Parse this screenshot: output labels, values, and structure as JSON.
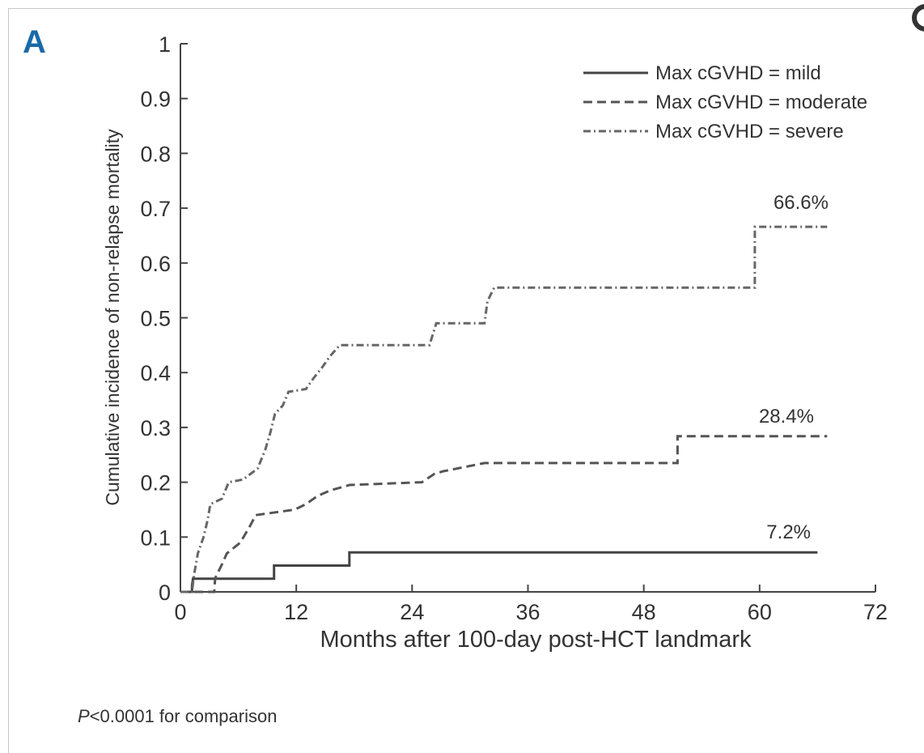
{
  "panel_label": "A",
  "footnote": {
    "p_symbol": "P",
    "text": "<0.0001 for comparison"
  },
  "chart_data": {
    "type": "line",
    "xlabel": "Months after 100-day post-HCT landmark",
    "ylabel": "Cumulative incidence of non-relapse mortality",
    "xlim": [
      0,
      72
    ],
    "ylim": [
      0,
      1
    ],
    "x_ticks": [
      0,
      12,
      24,
      36,
      48,
      60,
      72
    ],
    "y_ticks": [
      0,
      0.1,
      0.2,
      0.3,
      0.4,
      0.5,
      0.6,
      0.7,
      0.8,
      0.9,
      1
    ],
    "y_tick_labels": [
      "0",
      "0.1",
      "0.2",
      "0.3",
      "0.4",
      "0.5",
      "0.6",
      "0.7",
      "0.8",
      "0.9",
      "1"
    ],
    "grid": false,
    "legend_position": "top-right",
    "series": [
      {
        "name": "Max cGVHD = mild",
        "style": "solid",
        "color": "#444444",
        "end_label": "7.2%",
        "points": [
          [
            0,
            0
          ],
          [
            1.2,
            0
          ],
          [
            1.2,
            0.012
          ],
          [
            1.3,
            0.024
          ],
          [
            3.5,
            0.024
          ],
          [
            3.5,
            0.024
          ],
          [
            9.7,
            0.024
          ],
          [
            9.7,
            0.048
          ],
          [
            17.5,
            0.048
          ],
          [
            17.5,
            0.072
          ],
          [
            66,
            0.072
          ]
        ]
      },
      {
        "name": "Max cGVHD = moderate",
        "style": "dashed",
        "color": "#555555",
        "end_label": "28.4%",
        "points": [
          [
            0,
            0
          ],
          [
            3.5,
            0
          ],
          [
            3.6,
            0.025
          ],
          [
            4.3,
            0.05
          ],
          [
            4.8,
            0.07
          ],
          [
            6.2,
            0.09
          ],
          [
            7.2,
            0.12
          ],
          [
            7.8,
            0.14
          ],
          [
            11.8,
            0.15
          ],
          [
            13.0,
            0.16
          ],
          [
            14.2,
            0.175
          ],
          [
            15.5,
            0.185
          ],
          [
            17.5,
            0.195
          ],
          [
            25,
            0.2
          ],
          [
            26.3,
            0.215
          ],
          [
            27.2,
            0.22
          ],
          [
            31.5,
            0.235
          ],
          [
            51.5,
            0.235
          ],
          [
            51.5,
            0.284
          ],
          [
            67,
            0.284
          ]
        ]
      },
      {
        "name": "Max cGVHD = severe",
        "style": "dashdot",
        "color": "#666666",
        "end_label": "66.6%",
        "points": [
          [
            0,
            0
          ],
          [
            1.2,
            0
          ],
          [
            1.4,
            0.03
          ],
          [
            1.8,
            0.07
          ],
          [
            2.4,
            0.1
          ],
          [
            2.8,
            0.13
          ],
          [
            3.1,
            0.16
          ],
          [
            4.3,
            0.17
          ],
          [
            5.0,
            0.2
          ],
          [
            6.5,
            0.205
          ],
          [
            8.0,
            0.225
          ],
          [
            8.8,
            0.26
          ],
          [
            9.3,
            0.29
          ],
          [
            9.8,
            0.325
          ],
          [
            10.6,
            0.34
          ],
          [
            11.2,
            0.365
          ],
          [
            13.0,
            0.37
          ],
          [
            13.8,
            0.39
          ],
          [
            14.7,
            0.41
          ],
          [
            15.5,
            0.43
          ],
          [
            16.5,
            0.45
          ],
          [
            25.8,
            0.45
          ],
          [
            26.5,
            0.49
          ],
          [
            31.5,
            0.49
          ],
          [
            31.8,
            0.53
          ],
          [
            32.5,
            0.555
          ],
          [
            59.5,
            0.555
          ],
          [
            59.5,
            0.666
          ],
          [
            67,
            0.666
          ]
        ]
      }
    ]
  }
}
